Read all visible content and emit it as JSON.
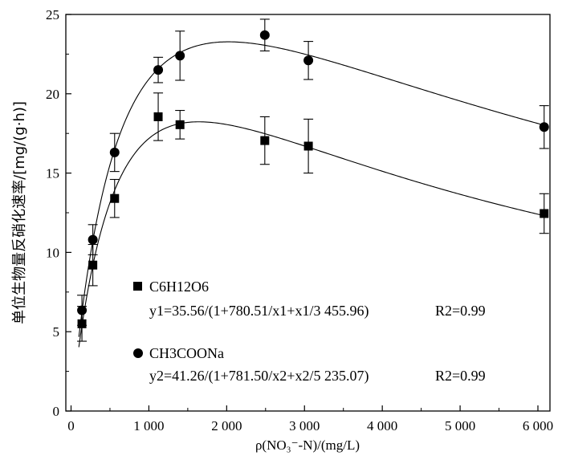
{
  "chart_data": {
    "type": "scatter",
    "xlabel": "ρ(NO₃⁻-N)/(mg/L)",
    "ylabel": "单位生物量反硝化速率/[mg/(g·h)]",
    "xlim": [
      0,
      6200
    ],
    "ylim": [
      0,
      25
    ],
    "xticks": [
      0,
      1000,
      2000,
      3000,
      4000,
      5000,
      6000
    ],
    "xtick_labels": [
      "0",
      "1 000",
      "2 000",
      "3 000",
      "4 000",
      "5 000",
      "6 000"
    ],
    "yticks": [
      0,
      5,
      10,
      15,
      20,
      25
    ],
    "ytick_labels": [
      "0",
      "5",
      "10",
      "15",
      "20",
      "25"
    ],
    "grid": false,
    "legend_position": "center-left",
    "series": [
      {
        "name": "C6H12O6",
        "marker": "square",
        "fit_equation": "y1=35.56/(1+780.51/x1+x1/3 455.96)",
        "r2": "R2=0.99",
        "fit": {
          "a": 35.56,
          "b": 780.51,
          "c": 3455.96
        },
        "points": [
          {
            "x": 140,
            "y": 5.5,
            "err": 1.1
          },
          {
            "x": 280,
            "y": 9.2,
            "err": 1.3
          },
          {
            "x": 560,
            "y": 13.4,
            "err": 1.2
          },
          {
            "x": 1120,
            "y": 18.55,
            "err": 1.5
          },
          {
            "x": 1400,
            "y": 18.05,
            "err": 0.9
          },
          {
            "x": 2490,
            "y": 17.05,
            "err": 1.5
          },
          {
            "x": 3050,
            "y": 16.7,
            "err": 1.7
          },
          {
            "x": 6080,
            "y": 12.45,
            "err": 1.25
          }
        ]
      },
      {
        "name": "CH3COONa",
        "marker": "circle",
        "fit_equation": "y2=41.26/(1+781.50/x2+x2/5 235.07)",
        "r2": "R2=0.99",
        "fit": {
          "a": 41.26,
          "b": 781.5,
          "c": 5235.07
        },
        "points": [
          {
            "x": 140,
            "y": 6.35,
            "err": 0.95
          },
          {
            "x": 280,
            "y": 10.8,
            "err": 0.95
          },
          {
            "x": 560,
            "y": 16.3,
            "err": 1.2
          },
          {
            "x": 1120,
            "y": 21.5,
            "err": 0.8
          },
          {
            "x": 1400,
            "y": 22.4,
            "err": 1.55
          },
          {
            "x": 2490,
            "y": 23.7,
            "err": 1.0
          },
          {
            "x": 3050,
            "y": 22.1,
            "err": 1.2
          },
          {
            "x": 6080,
            "y": 17.9,
            "err": 1.35
          }
        ]
      }
    ]
  }
}
